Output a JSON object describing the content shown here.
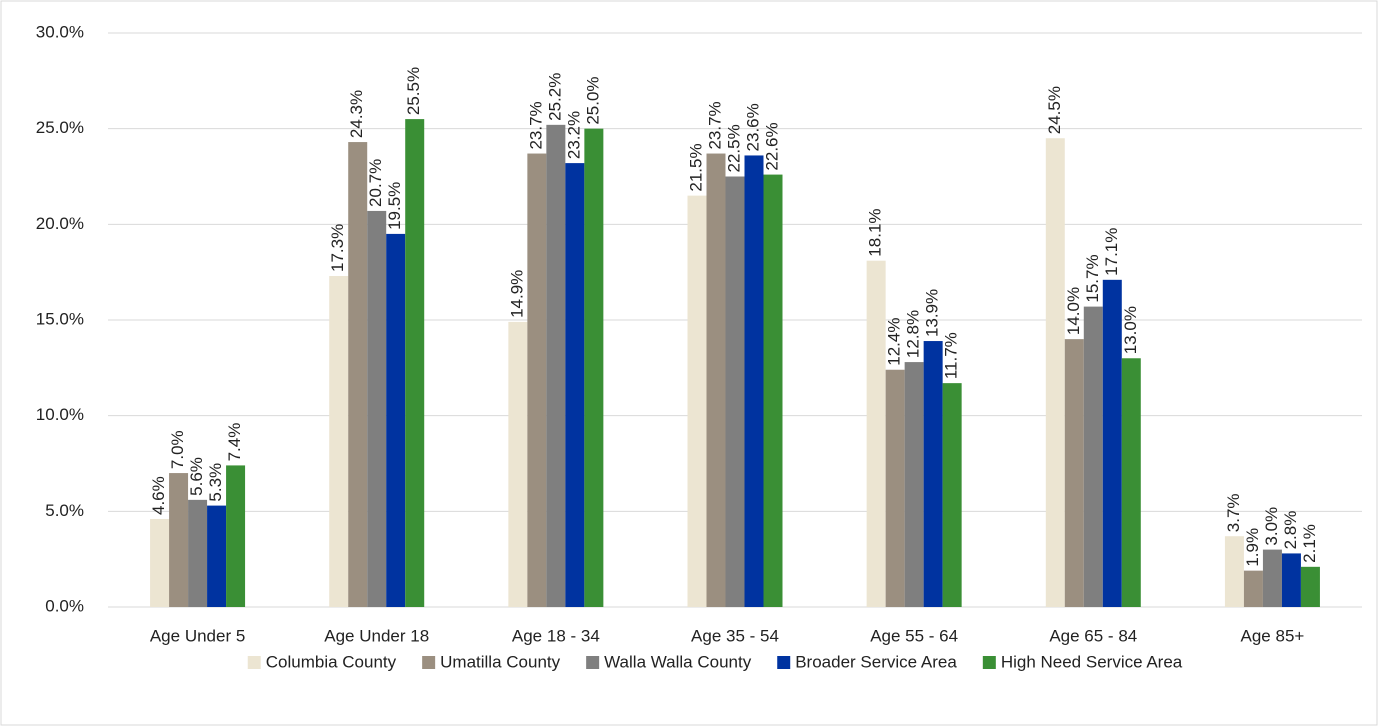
{
  "chart_data": {
    "type": "bar",
    "categories": [
      "Age Under 5",
      "Age Under 18",
      "Age 18 - 34",
      "Age 35 - 54",
      "Age 55 - 64",
      "Age 65 - 84",
      "Age 85+"
    ],
    "series": [
      {
        "name": "Columbia County",
        "color": "#ece5d2",
        "values": [
          4.6,
          17.3,
          14.9,
          21.5,
          18.1,
          24.5,
          3.7
        ],
        "value_labels": [
          "4.6%",
          "17.3%",
          "14.9%",
          "21.5%",
          "18.1%",
          "24.5%",
          "3.7%"
        ]
      },
      {
        "name": "Umatilla County",
        "color": "#9b8f80",
        "values": [
          7.0,
          24.3,
          23.7,
          23.7,
          12.4,
          14.0,
          1.9
        ],
        "value_labels": [
          "7.0%",
          "24.3%",
          "23.7%",
          "23.7%",
          "12.4%",
          "14.0%",
          "1.9%"
        ]
      },
      {
        "name": "Walla Walla County",
        "color": "#7f7f7f",
        "values": [
          5.6,
          20.7,
          25.2,
          22.5,
          12.8,
          15.7,
          3.0
        ],
        "value_labels": [
          "5.6%",
          "20.7%",
          "25.2%",
          "22.5%",
          "12.8%",
          "15.7%",
          "3.0%"
        ]
      },
      {
        "name": "Broader Service Area",
        "color": "#0033a0",
        "values": [
          5.3,
          19.5,
          23.2,
          23.6,
          13.9,
          17.1,
          2.8
        ],
        "value_labels": [
          "5.3%",
          "19.5%",
          "23.2%",
          "23.6%",
          "13.9%",
          "17.1%",
          "2.8%"
        ]
      },
      {
        "name": "High Need Service Area",
        "color": "#3a8f35",
        "values": [
          7.4,
          25.5,
          25.0,
          22.6,
          11.7,
          13.0,
          2.1
        ],
        "value_labels": [
          "7.4%",
          "25.5%",
          "25.0%",
          "22.6%",
          "11.7%",
          "13.0%",
          "2.1%"
        ]
      }
    ],
    "ylim": [
      0,
      30
    ],
    "yticks": [
      {
        "value": 0,
        "label": "0.0%"
      },
      {
        "value": 5,
        "label": "5.0%"
      },
      {
        "value": 10,
        "label": "10.0%"
      },
      {
        "value": 15,
        "label": "15.0%"
      },
      {
        "value": 20,
        "label": "20.0%"
      },
      {
        "value": 25,
        "label": "25.0%"
      },
      {
        "value": 30,
        "label": "30.0%"
      }
    ],
    "grid": true,
    "legend": "bottom"
  }
}
